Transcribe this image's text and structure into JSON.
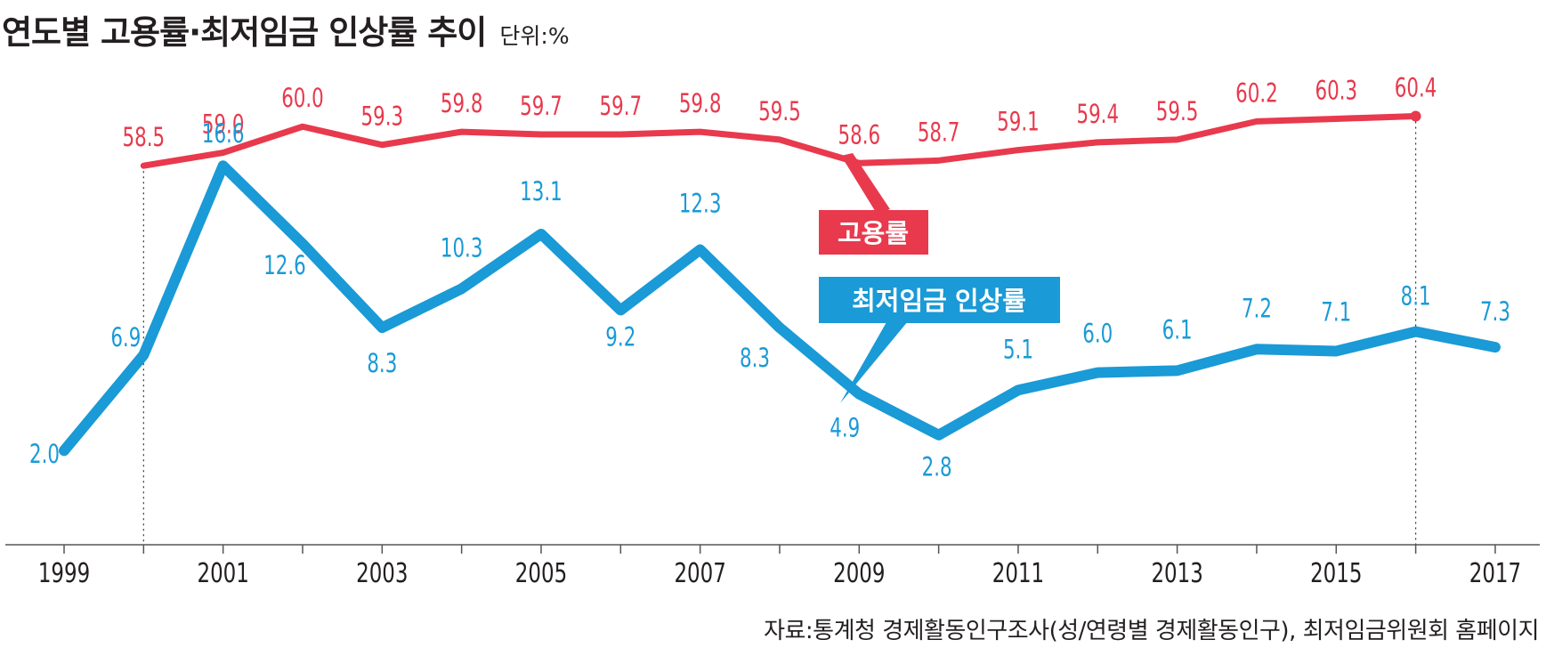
{
  "title": "연도별 고용률·최저임금 인상률 추이",
  "unit": "단위:%",
  "source": "자료:통계청 경제활동인구조사(성/연령별 경제활동인구), 최저임금위원회 홈페이지",
  "chart_data": {
    "type": "line",
    "x": [
      1999,
      2000,
      2001,
      2002,
      2003,
      2004,
      2005,
      2006,
      2007,
      2008,
      2009,
      2010,
      2011,
      2012,
      2013,
      2014,
      2015,
      2016,
      2017
    ],
    "xticklabels": [
      "1999",
      "2001",
      "2003",
      "2005",
      "2007",
      "2009",
      "2011",
      "2013",
      "2015",
      "2017"
    ],
    "series": [
      {
        "name": "고용률",
        "color": "#e8394d",
        "x": [
          2000,
          2001,
          2002,
          2003,
          2004,
          2005,
          2006,
          2007,
          2008,
          2009,
          2010,
          2011,
          2012,
          2013,
          2014,
          2015,
          2016
        ],
        "values": [
          58.5,
          59.0,
          60.0,
          59.3,
          59.8,
          59.7,
          59.7,
          59.8,
          59.5,
          58.6,
          58.7,
          59.1,
          59.4,
          59.5,
          60.2,
          60.3,
          60.4
        ],
        "labels": [
          "58.5",
          "59.0",
          "60.0",
          "59.3",
          "59.8",
          "59.7",
          "59.7",
          "59.8",
          "59.5",
          "58.6",
          "58.7",
          "59.1",
          "59.4",
          "59.5",
          "60.2",
          "60.3",
          "60.4"
        ]
      },
      {
        "name": "최저임금 인상률",
        "color": "#1a9ad6",
        "x": [
          1999,
          2000,
          2001,
          2002,
          2003,
          2004,
          2005,
          2006,
          2007,
          2008,
          2009,
          2010,
          2011,
          2012,
          2013,
          2014,
          2015,
          2016,
          2017
        ],
        "values": [
          2.0,
          6.9,
          16.6,
          12.6,
          8.3,
          10.3,
          13.1,
          9.2,
          12.3,
          8.3,
          4.9,
          2.8,
          5.1,
          6.0,
          6.1,
          7.2,
          7.1,
          8.1,
          7.3
        ],
        "labels": [
          "2.0",
          "6.9",
          "16.6",
          "12.6",
          "8.3",
          "10.3",
          "13.1",
          "9.2",
          "12.3",
          "8.3",
          "4.9",
          "2.8",
          "5.1",
          "6.0",
          "6.1",
          "7.2",
          "7.1",
          "8.1",
          "7.3"
        ]
      }
    ],
    "grid": false,
    "legend": "callout labels"
  }
}
